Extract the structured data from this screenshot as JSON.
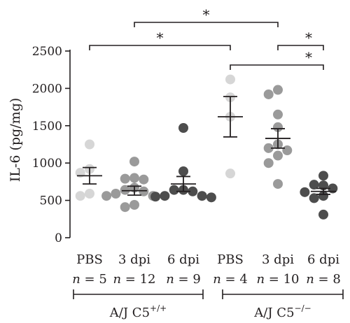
{
  "colors": {
    "axis": "#231f20",
    "pbs_light": "#d6d6d6",
    "dpi3_mid": "#9a9a9a",
    "dpi6_dark": "#4d4d4d"
  },
  "chart_data": {
    "type": "scatter",
    "ylabel": "IL-6 (pg/mg)",
    "ylim": [
      0,
      2500
    ],
    "yticks": [
      0,
      500,
      1000,
      1500,
      2000,
      2500
    ],
    "groups": [
      {
        "label": "PBS",
        "n_label": "n = 5",
        "n_prefix": "n",
        "n_value": "= 5",
        "color": "#d6d6d6",
        "points": [
          1250,
          920,
          870,
          590,
          560
        ],
        "mean": 830,
        "sem_low": 720,
        "sem_high": 940
      },
      {
        "label": "3 dpi",
        "n_label": "n = 12",
        "n_prefix": "n",
        "n_value": "= 12",
        "color": "#9a9a9a",
        "points": [
          1020,
          800,
          790,
          780,
          670,
          640,
          620,
          590,
          560,
          560,
          440,
          410
        ],
        "mean": 630,
        "sem_low": 570,
        "sem_high": 690
      },
      {
        "label": "6 dpi",
        "n_label": "n = 9",
        "n_prefix": "n",
        "n_value": "= 9",
        "color": "#4d4d4d",
        "points": [
          1470,
          890,
          640,
          640,
          620,
          560,
          560,
          550,
          540
        ],
        "mean": 720,
        "sem_low": 620,
        "sem_high": 820
      },
      {
        "label": "PBS",
        "n_label": "n = 4",
        "n_prefix": "n",
        "n_value": "= 4",
        "color": "#d6d6d6",
        "points": [
          2120,
          1880,
          1620,
          860
        ],
        "mean": 1620,
        "sem_low": 1350,
        "sem_high": 1890
      },
      {
        "label": "3 dpi",
        "n_label": "n = 10",
        "n_prefix": "n",
        "n_value": "= 10",
        "color": "#9a9a9a",
        "points": [
          1980,
          1920,
          1650,
          1480,
          1250,
          1200,
          1170,
          1100,
          1000,
          720
        ],
        "mean": 1330,
        "sem_low": 1200,
        "sem_high": 1460
      },
      {
        "label": "6 dpi",
        "n_label": "n = 8",
        "n_prefix": "n",
        "n_value": "= 8",
        "color": "#4d4d4d",
        "points": [
          830,
          710,
          700,
          660,
          610,
          560,
          530,
          310
        ],
        "mean": 620,
        "sem_low": 580,
        "sem_high": 660
      }
    ],
    "strain_groups": [
      {
        "label": "A/J C5",
        "superscript": "+/+"
      },
      {
        "label": "A/J C5",
        "superscript": "−/−"
      }
    ],
    "significance": [
      {
        "from_group": 0,
        "to_group": 3,
        "label": "*"
      },
      {
        "from_group": 1,
        "to_group": 4,
        "label": "*"
      },
      {
        "from_group": 3,
        "to_group": 5,
        "label": "*"
      },
      {
        "from_group": 4,
        "to_group": 5,
        "label": "*"
      }
    ]
  }
}
